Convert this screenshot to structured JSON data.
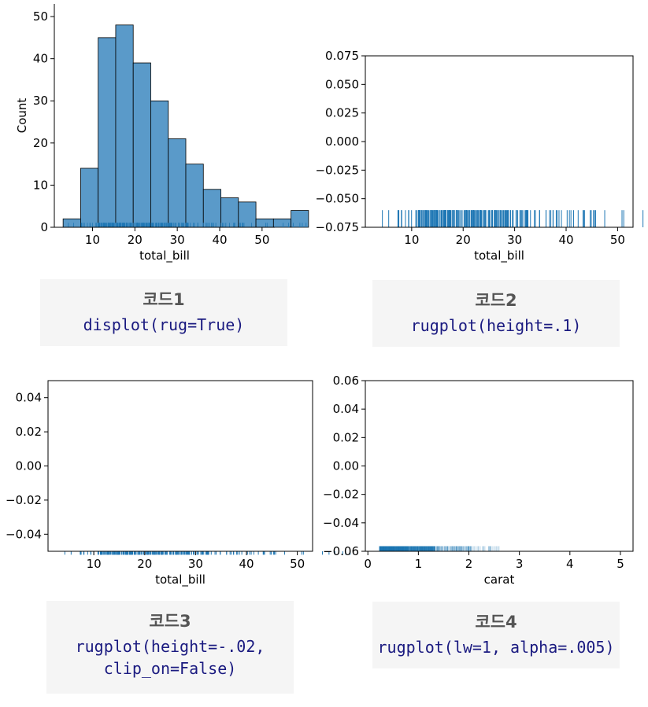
{
  "chart_data": [
    {
      "type": "bar",
      "subtype": "histogram with rug",
      "xlabel": "total_bill",
      "ylabel": "Count",
      "xlim": [
        1,
        53
      ],
      "ylim": [
        0,
        53
      ],
      "xticks": [
        10,
        20,
        30,
        40,
        50
      ],
      "yticks": [
        0,
        10,
        20,
        30,
        40,
        50
      ],
      "bin_width": 4.135,
      "bin_start": 3.07,
      "counts": [
        2,
        14,
        45,
        48,
        39,
        30,
        21,
        15,
        9,
        7,
        6,
        2,
        2,
        4
      ],
      "frame": "left-bottom spines only",
      "color": "#5a9ac9",
      "rug_color": "#1f77b4"
    },
    {
      "type": "rug",
      "xlabel": "total_bill",
      "ylabel": "",
      "xlim": [
        1,
        53
      ],
      "ylim": [
        -0.075,
        0.075
      ],
      "xticks": [
        10,
        20,
        30,
        40,
        50
      ],
      "yticks": [
        -0.075,
        -0.05,
        -0.025,
        0.0,
        0.025,
        0.05,
        0.075
      ],
      "height_fraction": 0.1,
      "color": "#1f77b4"
    },
    {
      "type": "rug",
      "xlabel": "total_bill",
      "ylabel": "",
      "xlim": [
        1,
        53
      ],
      "ylim": [
        -0.05,
        0.05
      ],
      "xticks": [
        10,
        20,
        30,
        40,
        50
      ],
      "yticks": [
        -0.04,
        -0.02,
        0.0,
        0.02,
        0.04
      ],
      "height_fraction": -0.02,
      "color": "#1f77b4"
    },
    {
      "type": "rug",
      "xlabel": "carat",
      "ylabel": "",
      "xlim": [
        -0.05,
        5.25
      ],
      "ylim": [
        -0.06,
        0.06
      ],
      "xticks": [
        0,
        1,
        2,
        3,
        4,
        5
      ],
      "yticks": [
        -0.06,
        -0.04,
        -0.02,
        0.0,
        0.02,
        0.04,
        0.06
      ],
      "height_fraction": 0.03,
      "alpha": 0.005,
      "color": "#1f77b4"
    }
  ],
  "captions": [
    {
      "title": "코드1",
      "code": [
        "displot(rug=True)"
      ]
    },
    {
      "title": "코드2",
      "code": [
        "rugplot(height=.1)"
      ]
    },
    {
      "title": "코드3",
      "code": [
        "rugplot(height=-.02,",
        "clip_on=False)"
      ]
    },
    {
      "title": "코드4",
      "code": [
        "rugplot(lw=1, alpha=.005)"
      ]
    }
  ]
}
